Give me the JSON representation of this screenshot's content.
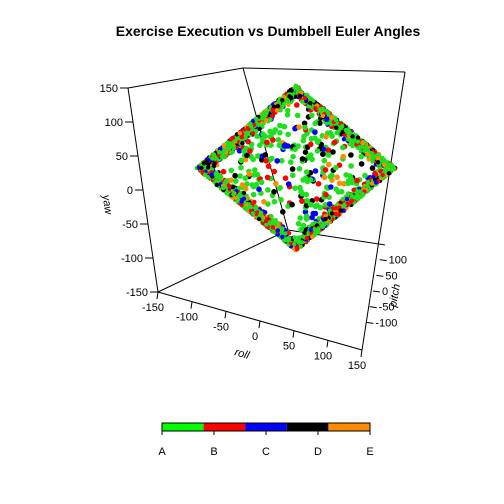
{
  "chart_data": {
    "type": "scatter",
    "subtype": "3d-scatter",
    "title": "Exercise Execution vs Dumbbell Euler Angles",
    "xlabel": "roll",
    "ylabel": "pitch",
    "zlabel": "yaw",
    "xlim": [
      -150,
      150
    ],
    "ylim": [
      -150,
      150
    ],
    "zlim": [
      -150,
      150
    ],
    "x_ticks": [
      -150,
      -100,
      -50,
      0,
      50,
      100,
      150
    ],
    "y_ticks": [
      -100,
      -50,
      0,
      50,
      100
    ],
    "z_ticks": [
      -150,
      -100,
      -50,
      0,
      50,
      100,
      150
    ],
    "legend": {
      "placement": "bottom",
      "entries": [
        {
          "name": "A",
          "color": "#00ff00"
        },
        {
          "name": "B",
          "color": "#ff0000"
        },
        {
          "name": "C",
          "color": "#0000ff"
        },
        {
          "name": "D",
          "color": "#000000"
        },
        {
          "name": "E",
          "color": "#ff8c00"
        }
      ]
    },
    "series": [
      {
        "name": "A",
        "color": "#1ee01e"
      },
      {
        "name": "B",
        "color": "#ff0000"
      },
      {
        "name": "C",
        "color": "#0000ff"
      },
      {
        "name": "D",
        "color": "#000000"
      },
      {
        "name": "E",
        "color": "#ff8c00"
      }
    ]
  }
}
